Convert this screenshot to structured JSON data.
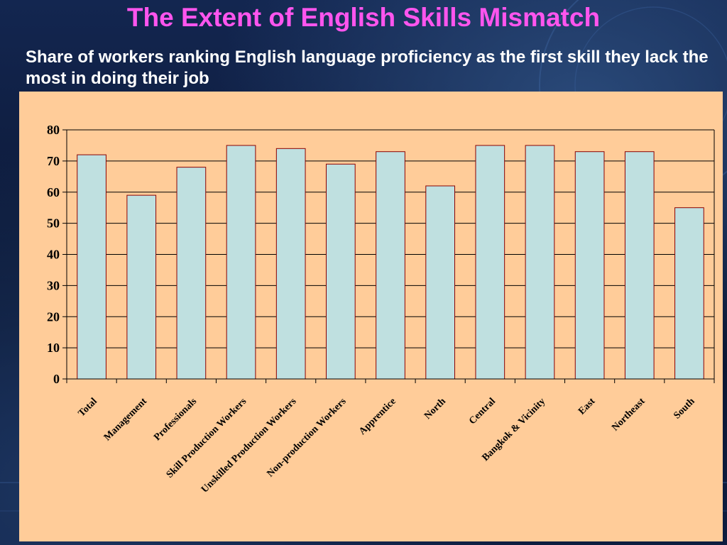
{
  "slide": {
    "title": "The Extent of English Skills Mismatch",
    "subtitle": "Share of workers ranking English language proficiency as the first skill they lack the most in doing their job"
  },
  "colors": {
    "title": "#ff55ee",
    "panel": "#ffcc99",
    "bar_fill": "#bfe0e0",
    "bar_stroke": "#8b0000"
  },
  "chart_data": {
    "type": "bar",
    "categories": [
      "Total",
      "Management",
      "Professionals",
      "Skill Production Workers",
      "Unskilled Production Workers",
      "Non-production Workers",
      "Apprentice",
      "North",
      "Central",
      "Bangkok & Vicinity",
      "East",
      "Northeast",
      "South"
    ],
    "values": [
      72,
      59,
      68,
      75,
      74,
      69,
      73,
      62,
      75,
      75,
      73,
      73,
      55
    ],
    "ylim": [
      0,
      80
    ],
    "yticks": [
      0,
      10,
      20,
      30,
      40,
      50,
      60,
      70,
      80
    ],
    "grid": true,
    "xlabel": "",
    "ylabel": ""
  }
}
